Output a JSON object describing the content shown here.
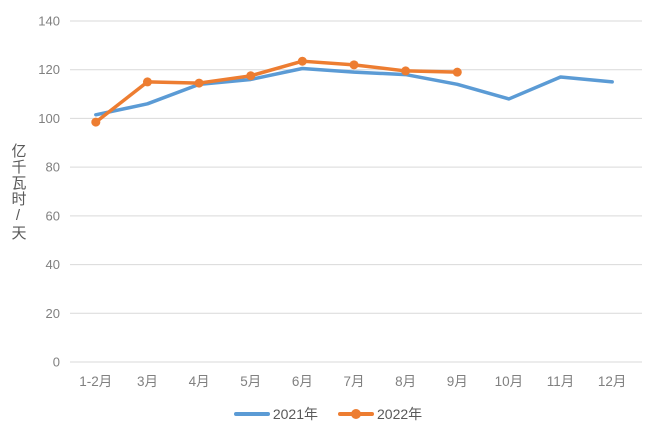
{
  "chart": {
    "y_axis_title": "亿千瓦时/天",
    "colors": {
      "background": "#FFFFFF",
      "gridline": "#D9D9D9",
      "tick_label": "#808080",
      "axis_title": "#595959",
      "legend_text": "#595959",
      "series_2021": "#5B9BD5",
      "series_2022": "#ED7D31"
    }
  },
  "chart_data": {
    "type": "line",
    "categories": [
      "1-2月",
      "3月",
      "4月",
      "5月",
      "6月",
      "7月",
      "8月",
      "9月",
      "10月",
      "11月",
      "12月"
    ],
    "series": [
      {
        "name": "2021年",
        "color": "#5B9BD5",
        "marker": "none",
        "values": [
          101.5,
          106,
          114,
          116,
          120.5,
          119,
          118,
          114,
          108,
          117,
          115
        ]
      },
      {
        "name": "2022年",
        "color": "#ED7D31",
        "marker": "circle",
        "values": [
          98.5,
          115,
          114.5,
          117.5,
          123.5,
          122,
          119.5,
          119,
          null,
          null,
          null
        ]
      }
    ],
    "title": "",
    "xlabel": "",
    "ylabel": "亿千瓦时/天",
    "ylim": [
      0,
      140
    ],
    "ytick_step": 20,
    "yticks": [
      0,
      20,
      40,
      60,
      80,
      100,
      120,
      140
    ],
    "grid": "horizontal",
    "legend_position": "bottom"
  }
}
